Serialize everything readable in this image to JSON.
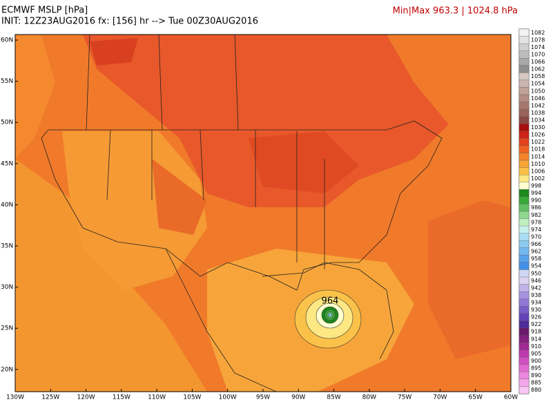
{
  "header": {
    "title": "ECMWF MSLP [hPa]",
    "init": "INIT: 12Z23AUG2016 fx: [156] hr --> Tue 00Z30AUG2016",
    "minmax": "Min|Max 963.3 | 1024.8 hPa"
  },
  "map": {
    "lat_labels": [
      "60N",
      "55N",
      "50N",
      "45N",
      "40N",
      "35N",
      "30N",
      "25N",
      "20N"
    ],
    "lon_labels": [
      "130W",
      "125W",
      "120W",
      "115W",
      "110W",
      "105W",
      "100W",
      "95W",
      "90W",
      "85W",
      "80W",
      "75W",
      "70W",
      "65W",
      "60W"
    ],
    "annotation": "964"
  },
  "colorbar": [
    {
      "label": "1082",
      "color": "#f2f2f2"
    },
    {
      "label": "1078",
      "color": "#e2e2e2"
    },
    {
      "label": "1074",
      "color": "#d0d0d0"
    },
    {
      "label": "1070",
      "color": "#bdbdbd"
    },
    {
      "label": "1066",
      "color": "#a8a8a8"
    },
    {
      "label": "1062",
      "color": "#8e8e8e"
    },
    {
      "label": "1058",
      "color": "#d8c8c4"
    },
    {
      "label": "1054",
      "color": "#ccb4ae"
    },
    {
      "label": "1050",
      "color": "#c0a098"
    },
    {
      "label": "1046",
      "color": "#b48c84"
    },
    {
      "label": "1042",
      "color": "#a8786e"
    },
    {
      "label": "1038",
      "color": "#9a645a"
    },
    {
      "label": "1034",
      "color": "#8a4a44"
    },
    {
      "label": "1030",
      "color": "#a81010"
    },
    {
      "label": "1026",
      "color": "#cc2418"
    },
    {
      "label": "1022",
      "color": "#e2421c"
    },
    {
      "label": "1018",
      "color": "#ee6224"
    },
    {
      "label": "1014",
      "color": "#f4842c"
    },
    {
      "label": "1010",
      "color": "#f7a436"
    },
    {
      "label": "1006",
      "color": "#fac048"
    },
    {
      "label": "1002",
      "color": "#fde884"
    },
    {
      "label": "998",
      "color": "#ffffd0"
    },
    {
      "label": "994",
      "color": "#1a8a1a"
    },
    {
      "label": "990",
      "color": "#38a838"
    },
    {
      "label": "986",
      "color": "#62c062"
    },
    {
      "label": "982",
      "color": "#90d890"
    },
    {
      "label": "978",
      "color": "#bfeebf"
    },
    {
      "label": "974",
      "color": "#c6f0ee"
    },
    {
      "label": "970",
      "color": "#a8dcf4"
    },
    {
      "label": "966",
      "color": "#8ccaf2"
    },
    {
      "label": "962",
      "color": "#74b8f0"
    },
    {
      "label": "958",
      "color": "#5aa2ec"
    },
    {
      "label": "954",
      "color": "#4490e8"
    },
    {
      "label": "950",
      "color": "#cfd8f4"
    },
    {
      "label": "946",
      "color": "#dcd2f2"
    },
    {
      "label": "942",
      "color": "#c2b2ea"
    },
    {
      "label": "938",
      "color": "#a892e0"
    },
    {
      "label": "934",
      "color": "#9078d6"
    },
    {
      "label": "930",
      "color": "#7a5ec8"
    },
    {
      "label": "926",
      "color": "#6444b8"
    },
    {
      "label": "922",
      "color": "#4e2c9c"
    },
    {
      "label": "918",
      "color": "#6a1a6a"
    },
    {
      "label": "914",
      "color": "#84207e"
    },
    {
      "label": "910",
      "color": "#a02a94"
    },
    {
      "label": "905",
      "color": "#bc3aac"
    },
    {
      "label": "900",
      "color": "#d050c0"
    },
    {
      "label": "895",
      "color": "#e06ad0"
    },
    {
      "label": "890",
      "color": "#ec88de"
    },
    {
      "label": "885",
      "color": "#f4a6ea"
    },
    {
      "label": "880",
      "color": "#f8c4f2"
    }
  ]
}
